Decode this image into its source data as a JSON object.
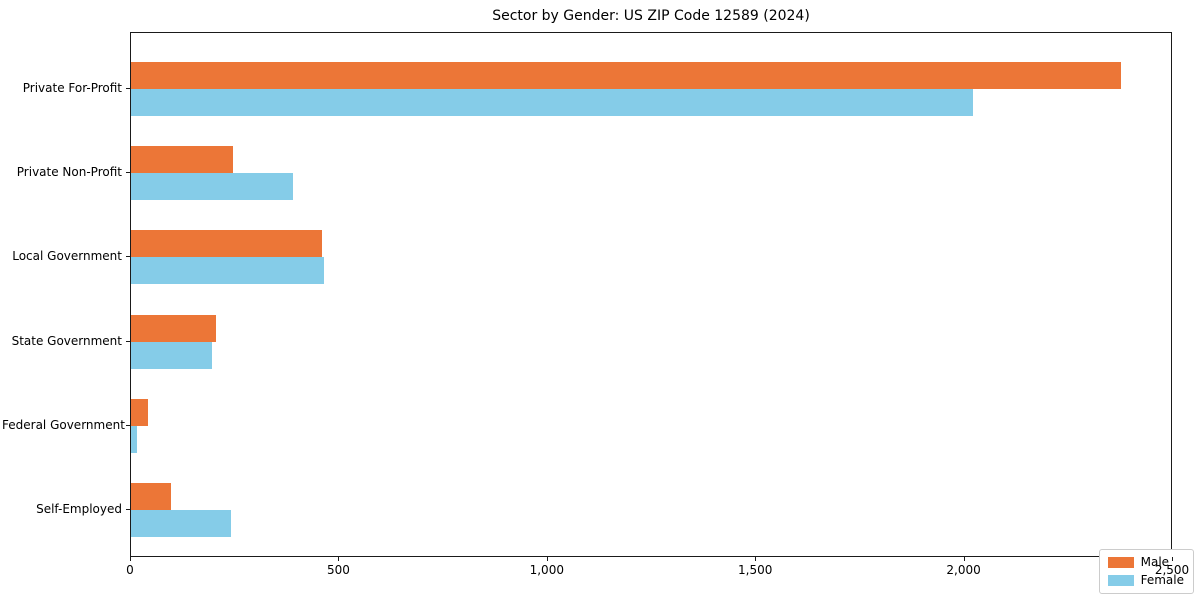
{
  "chart_data": {
    "type": "bar",
    "orientation": "horizontal",
    "title": "Sector by Gender: US ZIP Code 12589 (2024)",
    "categories": [
      "Private For-Profit",
      "Private Non-Profit",
      "Local Government",
      "State Government",
      "Federal Government",
      "Self-Employed"
    ],
    "series": [
      {
        "name": "Male",
        "color": "#ec7637",
        "values": [
          2380,
          245,
          460,
          205,
          40,
          95
        ]
      },
      {
        "name": "Female",
        "color": "#85cce8",
        "values": [
          2025,
          390,
          465,
          195,
          15,
          240
        ]
      }
    ],
    "xlabel": "",
    "ylabel": "",
    "xlim": [
      0,
      2500
    ],
    "x_ticks": [
      0,
      500,
      1000,
      1500,
      2000,
      2500
    ],
    "x_tick_labels": [
      "0",
      "500",
      "1,000",
      "1,500",
      "2,000",
      "2,500"
    ],
    "grid": false,
    "legend": {
      "position": "lower right",
      "entries": [
        "Male",
        "Female"
      ]
    },
    "colors": {
      "male": "#ec7637",
      "female": "#85cce8",
      "spine": "#1a1a1a",
      "legend_border": "#cccccc",
      "background": "#ffffff"
    }
  }
}
